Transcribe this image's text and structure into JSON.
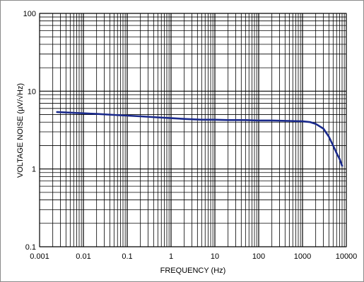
{
  "chart_data": {
    "type": "line",
    "xscale": "log",
    "yscale": "log",
    "xlim": [
      0.001,
      10000
    ],
    "ylim": [
      0.1,
      100
    ],
    "grid": true,
    "xlabel": "FREQUENCY (Hz)",
    "ylabel": "VOLTAGE NOISE (µV/√Hz)",
    "x_ticks": [
      {
        "value": 0.001,
        "label": "0.001"
      },
      {
        "value": 0.01,
        "label": "0.01"
      },
      {
        "value": 0.1,
        "label": "0.1"
      },
      {
        "value": 1,
        "label": "1"
      },
      {
        "value": 10,
        "label": "10"
      },
      {
        "value": 100,
        "label": "100"
      },
      {
        "value": 1000,
        "label": "1000"
      },
      {
        "value": 10000,
        "label": "10000"
      }
    ],
    "y_ticks": [
      {
        "value": 0.1,
        "label": "0.1"
      },
      {
        "value": 1,
        "label": "1"
      },
      {
        "value": 10,
        "label": "10"
      },
      {
        "value": 100,
        "label": "100"
      }
    ],
    "series": [
      {
        "color": "#1a2a8c",
        "x": [
          0.0025,
          0.005,
          0.01,
          0.02,
          0.05,
          0.1,
          0.2,
          0.5,
          1,
          2,
          5,
          10,
          20,
          50,
          100,
          200,
          500,
          1000,
          1500,
          2000,
          3000,
          4000,
          5000,
          6000,
          7000,
          8000
        ],
        "y": [
          5.4,
          5.3,
          5.2,
          5.1,
          4.95,
          4.85,
          4.75,
          4.6,
          4.5,
          4.4,
          4.3,
          4.3,
          4.25,
          4.25,
          4.2,
          4.2,
          4.15,
          4.1,
          4.0,
          3.8,
          3.3,
          2.6,
          2.0,
          1.6,
          1.35,
          1.1
        ]
      }
    ]
  }
}
